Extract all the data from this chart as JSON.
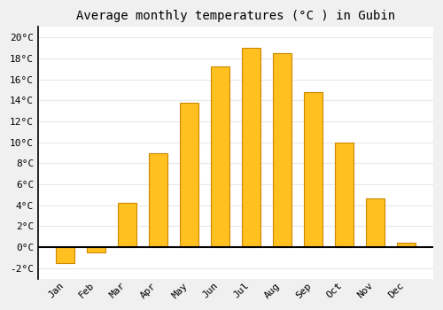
{
  "title": "Average monthly temperatures (°C ) in Gubin",
  "months": [
    "Jan",
    "Feb",
    "Mar",
    "Apr",
    "May",
    "Jun",
    "Jul",
    "Aug",
    "Sep",
    "Oct",
    "Nov",
    "Dec"
  ],
  "values": [
    -1.5,
    -0.5,
    4.2,
    9.0,
    13.8,
    17.2,
    19.0,
    18.5,
    14.8,
    10.0,
    4.7,
    0.4
  ],
  "bar_color": "#FFC020",
  "bar_edge_color": "#CC8800",
  "ylim": [
    -3,
    21
  ],
  "yticks": [
    -2,
    0,
    2,
    4,
    6,
    8,
    10,
    12,
    14,
    16,
    18,
    20
  ],
  "ytick_labels": [
    "-2°C",
    "0°C",
    "2°C",
    "4°C",
    "6°C",
    "8°C",
    "10°C",
    "12°C",
    "14°C",
    "16°C",
    "18°C",
    "20°C"
  ],
  "bg_color": "#f0f0f0",
  "plot_bg_color": "#ffffff",
  "grid_color": "#e8e8e8",
  "title_fontsize": 10,
  "tick_fontsize": 8,
  "bar_width": 0.6
}
